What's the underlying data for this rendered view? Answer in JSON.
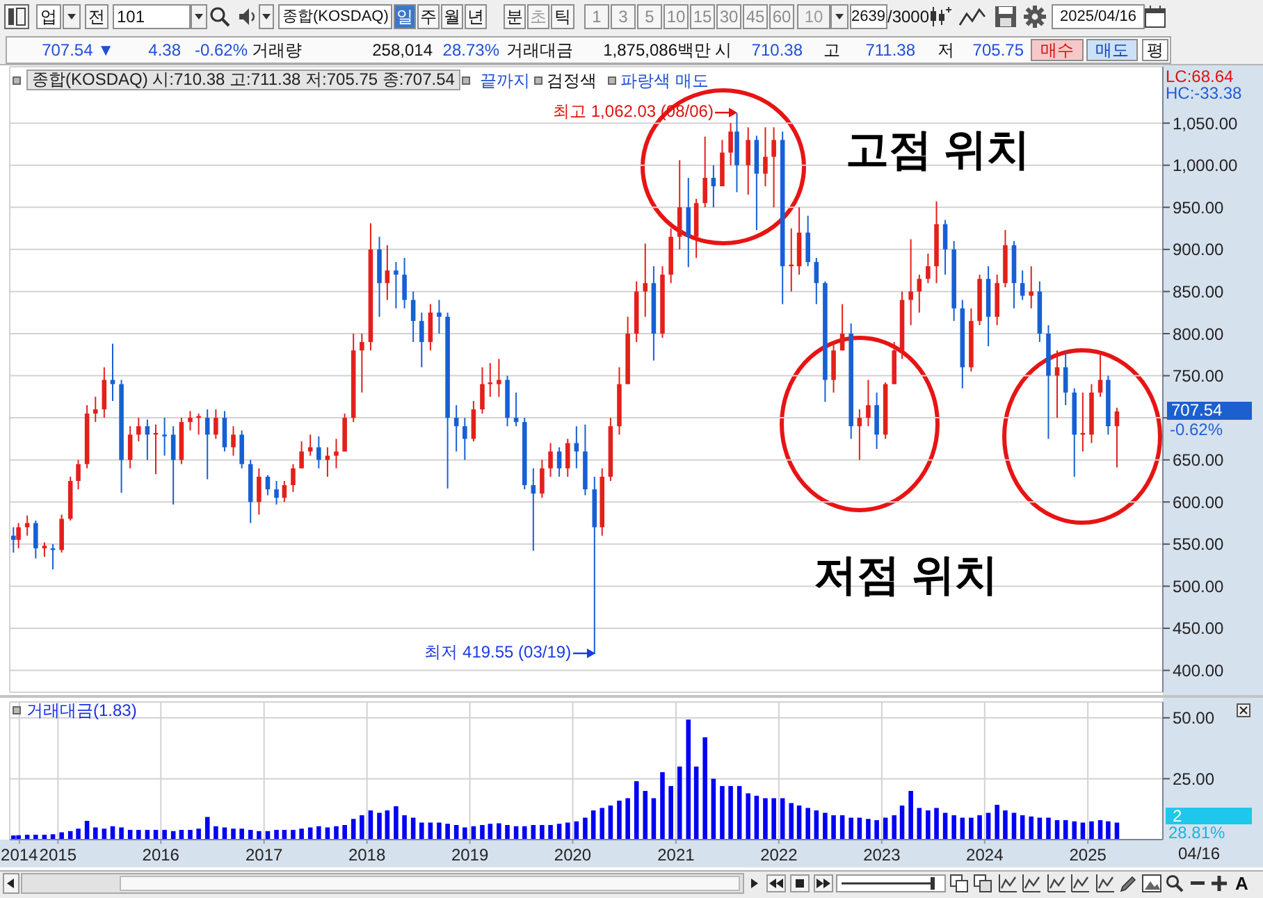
{
  "chart_data": [
    {
      "type": "candlestick",
      "title": "종합(KOSDAQ) 시:710.38 고:711.38 저:705.75 종:707.54",
      "x": [
        "2014-07-28",
        "2014-08-15",
        "2014-09-15",
        "2014-10-15",
        "2014-11-15",
        "2014-12-15",
        "2015-01-15",
        "2015-02-15",
        "2015-03-15",
        "2015-04-15",
        "2015-05-15",
        "2015-06-15",
        "2015-07-15",
        "2015-08-15",
        "2015-09-15",
        "2015-10-15",
        "2015-11-15",
        "2015-12-15",
        "2016-01-15",
        "2016-02-15",
        "2016-03-15",
        "2016-04-15",
        "2016-05-15",
        "2016-06-15",
        "2016-07-15",
        "2016-08-15",
        "2016-09-15",
        "2016-10-15",
        "2016-11-15",
        "2016-12-15",
        "2017-01-15",
        "2017-02-15",
        "2017-03-15",
        "2017-04-15",
        "2017-05-15",
        "2017-06-15",
        "2017-07-15",
        "2017-08-15",
        "2017-09-15",
        "2017-10-15",
        "2017-11-15",
        "2017-12-15",
        "2018-01-15",
        "2018-02-15",
        "2018-03-15",
        "2018-04-15",
        "2018-05-15",
        "2018-06-15",
        "2018-07-15",
        "2018-08-15",
        "2018-09-15",
        "2018-10-15",
        "2018-11-15",
        "2018-12-15",
        "2019-01-15",
        "2019-02-15",
        "2019-03-15",
        "2019-04-15",
        "2019-05-15",
        "2019-06-15",
        "2019-07-15",
        "2019-08-15",
        "2019-09-15",
        "2019-10-15",
        "2019-11-15",
        "2019-12-15",
        "2020-01-15",
        "2020-02-15",
        "2020-03-19",
        "2020-04-15",
        "2020-05-15",
        "2020-06-15",
        "2020-07-15",
        "2020-08-15",
        "2020-09-15",
        "2020-10-15",
        "2020-11-15",
        "2020-12-15",
        "2021-01-15",
        "2021-02-15",
        "2021-03-15",
        "2021-04-15",
        "2021-05-15",
        "2021-06-15",
        "2021-07-15",
        "2021-08-06",
        "2021-09-15",
        "2021-10-15",
        "2021-11-15",
        "2021-12-15",
        "2022-01-15",
        "2022-02-15",
        "2022-03-15",
        "2022-04-15",
        "2022-05-15",
        "2022-06-15",
        "2022-07-15",
        "2022-08-15",
        "2022-09-15",
        "2022-10-15",
        "2022-11-15",
        "2022-12-15",
        "2023-01-15",
        "2023-02-15",
        "2023-03-15",
        "2023-04-15",
        "2023-05-15",
        "2023-06-15",
        "2023-07-15",
        "2023-08-15",
        "2023-09-15",
        "2023-10-15",
        "2023-11-15",
        "2023-12-15",
        "2024-01-15",
        "2024-02-15",
        "2024-03-15",
        "2024-04-15",
        "2024-05-15",
        "2024-06-15",
        "2024-07-15",
        "2024-08-15",
        "2024-09-15",
        "2024-10-15",
        "2024-11-15",
        "2024-12-15",
        "2025-01-15",
        "2025-02-15",
        "2025-03-15",
        "2025-04-15"
      ],
      "ohlc": [
        [
          560,
          570,
          540,
          555
        ],
        [
          555,
          575,
          545,
          570
        ],
        [
          570,
          584,
          560,
          575
        ],
        [
          575,
          578,
          533,
          545
        ],
        [
          545,
          552,
          535,
          548
        ],
        [
          545,
          550,
          520,
          543
        ],
        [
          543,
          585,
          540,
          580
        ],
        [
          580,
          630,
          578,
          625
        ],
        [
          625,
          650,
          615,
          645
        ],
        [
          645,
          715,
          640,
          705
        ],
        [
          705,
          725,
          695,
          710
        ],
        [
          710,
          760,
          700,
          745
        ],
        [
          745,
          788,
          720,
          740
        ],
        [
          740,
          745,
          611,
          650
        ],
        [
          650,
          690,
          640,
          680
        ],
        [
          680,
          700,
          672,
          690
        ],
        [
          690,
          698,
          650,
          680
        ],
        [
          680,
          692,
          633,
          682
        ],
        [
          680,
          700,
          655,
          678
        ],
        [
          680,
          690,
          597,
          650
        ],
        [
          650,
          700,
          645,
          695
        ],
        [
          695,
          708,
          685,
          700
        ],
        [
          700,
          705,
          680,
          702
        ],
        [
          700,
          710,
          627,
          680
        ],
        [
          680,
          710,
          675,
          700
        ],
        [
          700,
          708,
          660,
          665
        ],
        [
          665,
          690,
          655,
          680
        ],
        [
          680,
          685,
          640,
          645
        ],
        [
          645,
          650,
          575,
          600
        ],
        [
          600,
          640,
          585,
          630
        ],
        [
          630,
          632,
          608,
          615
        ],
        [
          615,
          625,
          597,
          605
        ],
        [
          605,
          625,
          600,
          620
        ],
        [
          620,
          645,
          612,
          640
        ],
        [
          640,
          672,
          640,
          660
        ],
        [
          660,
          680,
          655,
          665
        ],
        [
          665,
          678,
          640,
          650
        ],
        [
          650,
          665,
          630,
          655
        ],
        [
          655,
          675,
          640,
          660
        ],
        [
          660,
          705,
          660,
          700
        ],
        [
          700,
          800,
          695,
          780
        ],
        [
          780,
          800,
          730,
          790
        ],
        [
          790,
          931,
          780,
          900
        ],
        [
          900,
          915,
          820,
          860
        ],
        [
          860,
          905,
          840,
          875
        ],
        [
          875,
          885,
          830,
          870
        ],
        [
          870,
          890,
          830,
          840
        ],
        [
          840,
          850,
          790,
          815
        ],
        [
          815,
          825,
          760,
          790
        ],
        [
          790,
          835,
          780,
          825
        ],
        [
          825,
          840,
          800,
          820
        ],
        [
          820,
          825,
          616,
          700
        ],
        [
          700,
          715,
          660,
          690
        ],
        [
          690,
          700,
          650,
          675
        ],
        [
          675,
          720,
          672,
          710
        ],
        [
          710,
          760,
          705,
          740
        ],
        [
          740,
          765,
          725,
          742
        ],
        [
          740,
          770,
          725,
          745
        ],
        [
          745,
          750,
          690,
          700
        ],
        [
          700,
          730,
          690,
          695
        ],
        [
          695,
          700,
          615,
          620
        ],
        [
          620,
          640,
          542,
          610
        ],
        [
          610,
          650,
          605,
          640
        ],
        [
          640,
          670,
          630,
          660
        ],
        [
          660,
          665,
          630,
          640
        ],
        [
          640,
          675,
          630,
          670
        ],
        [
          670,
          690,
          640,
          660
        ],
        [
          660,
          692,
          608,
          615
        ],
        [
          615,
          630,
          419.55,
          570
        ],
        [
          570,
          640,
          560,
          630
        ],
        [
          630,
          700,
          625,
          690
        ],
        [
          690,
          760,
          680,
          740
        ],
        [
          740,
          820,
          740,
          800
        ],
        [
          800,
          862,
          790,
          850
        ],
        [
          850,
          907,
          820,
          860
        ],
        [
          860,
          880,
          768,
          800
        ],
        [
          800,
          880,
          795,
          870
        ],
        [
          870,
          925,
          860,
          915
        ],
        [
          915,
          1006,
          900,
          950
        ],
        [
          950,
          985,
          879,
          915
        ],
        [
          915,
          960,
          890,
          955
        ],
        [
          955,
          1034,
          950,
          985
        ],
        [
          985,
          1000,
          950,
          975
        ],
        [
          975,
          1030,
          975,
          1015
        ],
        [
          1015,
          1050,
          1000,
          1040
        ],
        [
          1040,
          1062.03,
          968,
          1000
        ],
        [
          1000,
          1045,
          965,
          1030
        ],
        [
          1030,
          1035,
          923,
          990
        ],
        [
          990,
          1045,
          975,
          1010
        ],
        [
          1010,
          1045,
          950,
          1030
        ],
        [
          1030,
          1040,
          835,
          880
        ],
        [
          880,
          925,
          850,
          882
        ],
        [
          880,
          950,
          870,
          920
        ],
        [
          920,
          940,
          880,
          885
        ],
        [
          885,
          890,
          835,
          860
        ],
        [
          860,
          862,
          719,
          745
        ],
        [
          745,
          790,
          730,
          780
        ],
        [
          780,
          835,
          780,
          800
        ],
        [
          800,
          812,
          675,
          690
        ],
        [
          690,
          710,
          650,
          700
        ],
        [
          700,
          745,
          690,
          715
        ],
        [
          715,
          730,
          663,
          680
        ],
        [
          680,
          742,
          675,
          740
        ],
        [
          740,
          790,
          740,
          780
        ],
        [
          780,
          850,
          770,
          840
        ],
        [
          840,
          912,
          810,
          850
        ],
        [
          850,
          870,
          825,
          865
        ],
        [
          865,
          895,
          860,
          880
        ],
        [
          880,
          957,
          860,
          930
        ],
        [
          930,
          935,
          870,
          900
        ],
        [
          900,
          910,
          815,
          830
        ],
        [
          830,
          840,
          735,
          760
        ],
        [
          760,
          830,
          755,
          815
        ],
        [
          815,
          870,
          810,
          865
        ],
        [
          865,
          880,
          785,
          820
        ],
        [
          820,
          870,
          810,
          860
        ],
        [
          860,
          923,
          855,
          905
        ],
        [
          905,
          910,
          830,
          860
        ],
        [
          860,
          875,
          840,
          845
        ],
        [
          845,
          880,
          830,
          850
        ],
        [
          850,
          862,
          790,
          800
        ],
        [
          800,
          810,
          675,
          750
        ],
        [
          750,
          780,
          700,
          760
        ],
        [
          760,
          780,
          715,
          730
        ],
        [
          730,
          735,
          630,
          680
        ],
        [
          680,
          730,
          660,
          682
        ],
        [
          680,
          740,
          670,
          730
        ],
        [
          730,
          779,
          725,
          745
        ],
        [
          745,
          750,
          680,
          690
        ],
        [
          690,
          712,
          641,
          707.54
        ]
      ],
      "colors": [
        "#1760d4",
        "#e3201b",
        "#e3201b",
        "#1760d4",
        "#e3201b",
        "#1760d4",
        "#e3201b",
        "#e3201b",
        "#e3201b",
        "#e3201b",
        "#e3201b",
        "#e3201b",
        "#1760d4",
        "#1760d4",
        "#e3201b",
        "#e3201b",
        "#1760d4",
        "#e3201b",
        "#1760d4",
        "#1760d4",
        "#e3201b",
        "#e3201b",
        "#e3201b",
        "#1760d4",
        "#e3201b",
        "#1760d4",
        "#e3201b",
        "#1760d4",
        "#1760d4",
        "#e3201b",
        "#1760d4",
        "#1760d4",
        "#e3201b",
        "#e3201b",
        "#e3201b",
        "#e3201b",
        "#1760d4",
        "#e3201b",
        "#e3201b",
        "#e3201b",
        "#e3201b",
        "#e3201b",
        "#e3201b",
        "#1760d4",
        "#e3201b",
        "#1760d4",
        "#1760d4",
        "#1760d4",
        "#1760d4",
        "#e3201b",
        "#1760d4",
        "#1760d4",
        "#1760d4",
        "#1760d4",
        "#e3201b",
        "#e3201b",
        "#e3201b",
        "#e3201b",
        "#1760d4",
        "#1760d4",
        "#1760d4",
        "#1760d4",
        "#e3201b",
        "#e3201b",
        "#1760d4",
        "#e3201b",
        "#1760d4",
        "#1760d4",
        "#1760d4",
        "#e3201b",
        "#e3201b",
        "#e3201b",
        "#e3201b",
        "#e3201b",
        "#e3201b",
        "#1760d4",
        "#e3201b",
        "#e3201b",
        "#e3201b",
        "#1760d4",
        "#e3201b",
        "#e3201b",
        "#1760d4",
        "#e3201b",
        "#e3201b",
        "#1760d4",
        "#e3201b",
        "#1760d4",
        "#e3201b",
        "#e3201b",
        "#1760d4",
        "#e3201b",
        "#e3201b",
        "#1760d4",
        "#1760d4",
        "#1760d4",
        "#e3201b",
        "#e3201b",
        "#1760d4",
        "#e3201b",
        "#e3201b",
        "#1760d4",
        "#e3201b",
        "#e3201b",
        "#e3201b",
        "#e3201b",
        "#e3201b",
        "#e3201b",
        "#e3201b",
        "#1760d4",
        "#1760d4",
        "#1760d4",
        "#e3201b",
        "#e3201b",
        "#1760d4",
        "#e3201b",
        "#e3201b",
        "#1760d4",
        "#1760d4",
        "#e3201b",
        "#1760d4",
        "#1760d4",
        "#e3201b",
        "#1760d4",
        "#1760d4",
        "#e3201b",
        "#e3201b",
        "#e3201b",
        "#1760d4",
        "#e3201b"
      ],
      "xlim": [
        "2014-07-14",
        "2025-09-24"
      ],
      "xticks": [
        {
          "value": "2015-01-01",
          "label": null
        },
        {
          "value": "2016-01-01",
          "label": null
        },
        {
          "value": "2017-01-01",
          "label": null
        },
        {
          "value": "2018-01-01",
          "label": null
        },
        {
          "value": "2019-01-01",
          "label": null
        },
        {
          "value": "2020-01-01",
          "label": null
        },
        {
          "value": "2021-01-01",
          "label": null
        },
        {
          "value": "2022-01-01",
          "label": null
        },
        {
          "value": "2023-01-01",
          "label": null
        },
        {
          "value": "2024-01-01",
          "label": null
        },
        {
          "value": "2025-01-01",
          "label": null
        }
      ],
      "ylim": [
        374,
        1117
      ],
      "yticks": [
        {
          "value": 400,
          "label": "400.00"
        },
        {
          "value": 450,
          "label": "450.00"
        },
        {
          "value": 500,
          "label": "500.00"
        },
        {
          "value": 550,
          "label": "550.00"
        },
        {
          "value": 600,
          "label": "600.00"
        },
        {
          "value": 650,
          "label": "650.00"
        },
        {
          "value": 700,
          "label": null
        },
        {
          "value": 750,
          "label": "750.00"
        },
        {
          "value": 800,
          "label": "800.00"
        },
        {
          "value": 850,
          "label": "850.00"
        },
        {
          "value": 900,
          "label": "900.00"
        },
        {
          "value": 950,
          "label": "950.00"
        },
        {
          "value": 1000,
          "label": "1,000.00"
        },
        {
          "value": 1050,
          "label": "1,050.00"
        }
      ],
      "grid": true,
      "tick_labels": "y",
      "annotations": [
        "업",
        "전",
        "101",
        "종합(KOSDAQ)",
        "일",
        "주",
        "월",
        "년",
        "분",
        "초",
        "틱",
        "1",
        "3",
        "5",
        "10",
        "15",
        "30",
        "45",
        "60",
        "10",
        "2639",
        "/3000",
        "2025/04/16",
        "707.54 ▼",
        "4.38",
        "-0.62%",
        "거래량",
        "258,014",
        "28.73%",
        "거래대금",
        "1,875,086백만",
        "시",
        "710.38",
        "고",
        "711.38",
        "저",
        "705.75",
        "매수",
        "매도",
        "평",
        "끝까지",
        "검정색",
        "파랑색 매도",
        "LC:68.64",
        "HC:-33.38",
        {
          "text": "최고 1,062.03 (08/06)",
          "x": "2021-08-06",
          "y": 1062.03
        },
        {
          "text": "최저 419.55 (03/19)",
          "x": "2020-03-19",
          "y": 419.55
        },
        "고점 위치",
        "저점 위치",
        "707.54",
        "-0.62%"
      ]
    },
    {
      "type": "bar",
      "title": "거래대금(1.83)",
      "x": [
        "2014-07-28",
        "2014-08-15",
        "2014-09-15",
        "2014-10-15",
        "2014-11-15",
        "2014-12-15",
        "2015-01-15",
        "2015-02-15",
        "2015-03-15",
        "2015-04-15",
        "2015-05-15",
        "2015-06-15",
        "2015-07-15",
        "2015-08-15",
        "2015-09-15",
        "2015-10-15",
        "2015-11-15",
        "2015-12-15",
        "2016-01-15",
        "2016-02-15",
        "2016-03-15",
        "2016-04-15",
        "2016-05-15",
        "2016-06-15",
        "2016-07-15",
        "2016-08-15",
        "2016-09-15",
        "2016-10-15",
        "2016-11-15",
        "2016-12-15",
        "2017-01-15",
        "2017-02-15",
        "2017-03-15",
        "2017-04-15",
        "2017-05-15",
        "2017-06-15",
        "2017-07-15",
        "2017-08-15",
        "2017-09-15",
        "2017-10-15",
        "2017-11-15",
        "2017-12-15",
        "2018-01-15",
        "2018-02-15",
        "2018-03-15",
        "2018-04-15",
        "2018-05-15",
        "2018-06-15",
        "2018-07-15",
        "2018-08-15",
        "2018-09-15",
        "2018-10-15",
        "2018-11-15",
        "2018-12-15",
        "2019-01-15",
        "2019-02-15",
        "2019-03-15",
        "2019-04-15",
        "2019-05-15",
        "2019-06-15",
        "2019-07-15",
        "2019-08-15",
        "2019-09-15",
        "2019-10-15",
        "2019-11-15",
        "2019-12-15",
        "2020-01-15",
        "2020-02-15",
        "2020-03-15",
        "2020-04-15",
        "2020-05-15",
        "2020-06-15",
        "2020-07-15",
        "2020-08-15",
        "2020-09-15",
        "2020-10-15",
        "2020-11-15",
        "2020-12-15",
        "2021-01-15",
        "2021-02-15",
        "2021-03-15",
        "2021-04-15",
        "2021-05-15",
        "2021-06-15",
        "2021-07-15",
        "2021-08-15",
        "2021-09-15",
        "2021-10-15",
        "2021-11-15",
        "2021-12-15",
        "2022-01-15",
        "2022-02-15",
        "2022-03-15",
        "2022-04-15",
        "2022-05-15",
        "2022-06-15",
        "2022-07-15",
        "2022-08-15",
        "2022-09-15",
        "2022-10-15",
        "2022-11-15",
        "2022-12-15",
        "2023-01-15",
        "2023-02-15",
        "2023-03-15",
        "2023-04-15",
        "2023-05-15",
        "2023-06-15",
        "2023-07-15",
        "2023-08-15",
        "2023-09-15",
        "2023-10-15",
        "2023-11-15",
        "2023-12-15",
        "2024-01-15",
        "2024-02-15",
        "2024-03-15",
        "2024-04-15",
        "2024-05-15",
        "2024-06-15",
        "2024-07-15",
        "2024-08-15",
        "2024-09-15",
        "2024-10-15",
        "2024-11-15",
        "2024-12-15",
        "2025-01-15",
        "2025-02-15",
        "2025-03-15",
        "2025-04-15"
      ],
      "values": [
        1.7,
        1.8,
        2.0,
        2.0,
        2.0,
        2.2,
        3.0,
        3.5,
        4.5,
        7.7,
        5.0,
        4.5,
        5.5,
        5.0,
        4.0,
        4.0,
        4.0,
        4.0,
        4.0,
        3.5,
        4.0,
        4.0,
        4.5,
        9.3,
        5.5,
        5.0,
        4.5,
        4.5,
        4.0,
        3.5,
        3.5,
        4.0,
        4.0,
        4.0,
        4.5,
        5.0,
        5.5,
        5.0,
        5.5,
        6.0,
        8.5,
        10.0,
        12.0,
        11.0,
        12.0,
        13.7,
        10.0,
        9.0,
        7.0,
        7.0,
        7.0,
        6.5,
        6.0,
        5.0,
        5.5,
        6.0,
        6.5,
        6.7,
        6.0,
        5.5,
        5.5,
        6.0,
        6.0,
        6.0,
        6.5,
        7.0,
        7.5,
        9.0,
        12.0,
        13.0,
        14.0,
        16.0,
        17.0,
        24.0,
        20.0,
        17.0,
        27.7,
        22.0,
        30.0,
        49.3,
        30.0,
        42.0,
        25.0,
        22.0,
        22.0,
        22.0,
        19.0,
        18.0,
        17.0,
        17.0,
        17.0,
        15.0,
        14.0,
        13.0,
        12.0,
        11.0,
        10.0,
        10.0,
        9.0,
        9.0,
        8.5,
        8.0,
        9.0,
        10.0,
        14.0,
        20.0,
        13.0,
        12.0,
        13.0,
        11.0,
        10.0,
        9.0,
        9.0,
        10.0,
        11.0,
        14.3,
        12.0,
        11.0,
        10.0,
        9.5,
        9.0,
        9.0,
        8.0,
        8.0,
        7.5,
        7.0,
        7.5,
        8.0,
        7.5,
        7.0
      ],
      "color": "#0000f5",
      "xlim": [
        "2014-07-14",
        "2025-09-24"
      ],
      "xticks": [
        {
          "value": "2014-08-17",
          "label": "2014"
        },
        {
          "value": "2015-01-01",
          "label": "2015"
        },
        {
          "value": "2016-01-01",
          "label": "2016"
        },
        {
          "value": "2017-01-01",
          "label": "2017"
        },
        {
          "value": "2018-01-01",
          "label": "2018"
        },
        {
          "value": "2019-01-01",
          "label": "2019"
        },
        {
          "value": "2020-01-01",
          "label": "2020"
        },
        {
          "value": "2021-01-01",
          "label": "2021"
        },
        {
          "value": "2022-01-01",
          "label": "2022"
        },
        {
          "value": "2023-01-01",
          "label": "2023"
        },
        {
          "value": "2024-01-01",
          "label": "2024"
        },
        {
          "value": "2025-01-01",
          "label": "2025"
        }
      ],
      "ylim": [
        0,
        56.5
      ],
      "yticks": [
        {
          "value": 25,
          "label": "25.00"
        },
        {
          "value": 50,
          "label": "50.00"
        }
      ],
      "grid": true,
      "annotations": [
        "2",
        "28.81%",
        "04/16",
        "A"
      ]
    }
  ]
}
